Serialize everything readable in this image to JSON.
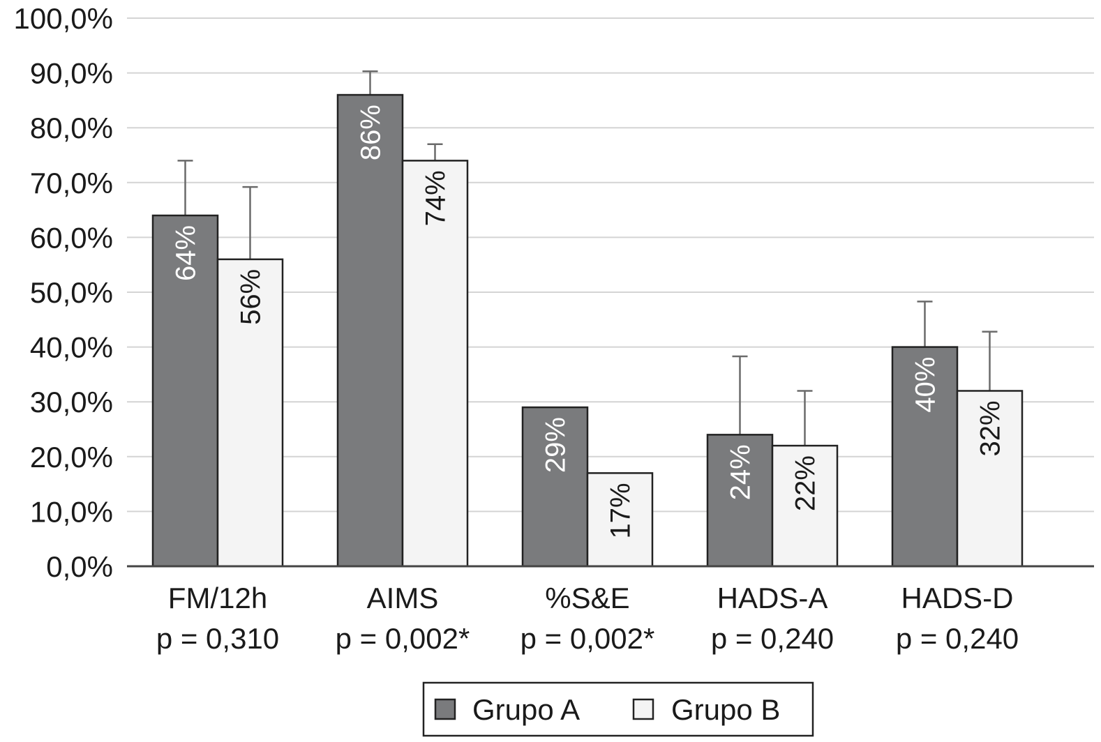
{
  "chart_data": {
    "type": "bar",
    "categories": [
      "FM/12h",
      "AIMS",
      "%S&E",
      "HADS-A",
      "HADS-D"
    ],
    "category_pvalues": [
      "p = 0,310",
      "p = 0,002*",
      "p = 0,002*",
      "p = 0,240",
      "p = 0,240"
    ],
    "series": [
      {
        "name": "Grupo A",
        "color": "#7a7b7d",
        "values": [
          64,
          86,
          29,
          24,
          40
        ],
        "labels": [
          "64%",
          "86%",
          "29%",
          "24%",
          "40%"
        ],
        "error_upper": [
          74,
          90.3,
          null,
          38.3,
          48.3
        ]
      },
      {
        "name": "Grupo B",
        "color": "#f4f4f4",
        "values": [
          56,
          74,
          17,
          22,
          32
        ],
        "labels": [
          "56%",
          "74%",
          "17%",
          "22%",
          "32%"
        ],
        "error_upper": [
          69.2,
          77,
          null,
          32,
          42.8
        ]
      }
    ],
    "ylim": [
      0,
      100
    ],
    "yticks": [
      "0,0%",
      "10,0%",
      "20,0%",
      "30,0%",
      "40,0%",
      "50,0%",
      "60,0%",
      "70,0%",
      "80,0%",
      "90,0%",
      "100,0%"
    ],
    "grid": true,
    "legend_position": "bottom",
    "title": "",
    "xlabel": "",
    "ylabel": ""
  }
}
